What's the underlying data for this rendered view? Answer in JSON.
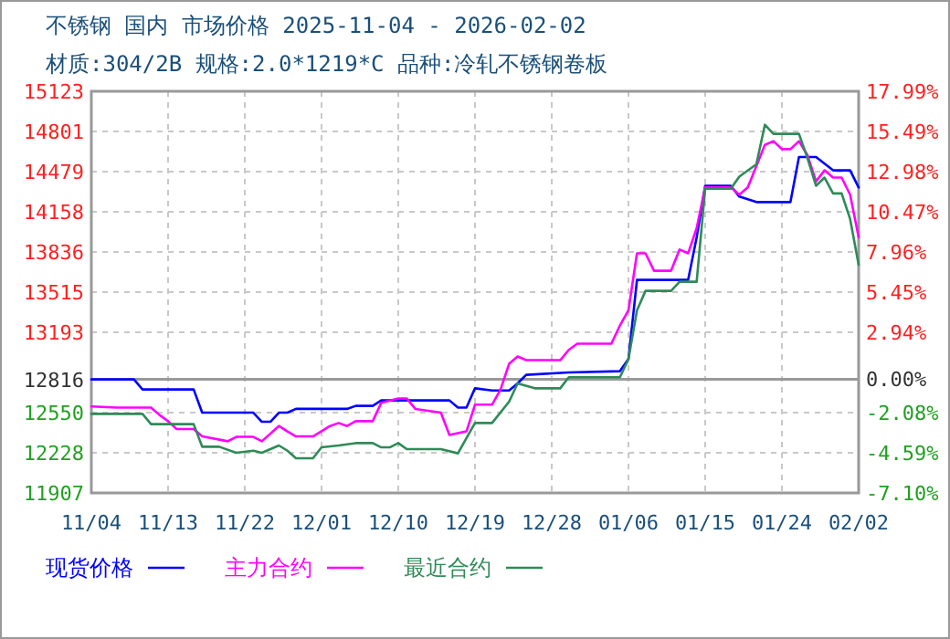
{
  "chart_data": {
    "type": "line",
    "title": "不锈钢 国内 市场价格 2025-11-04 - 2026-02-02",
    "subtitle": "材质:304/2B 规格:2.0*1219*C 品种:冷轧不锈钢卷板",
    "xlim": [
      "2025-11-04",
      "2026-02-02"
    ],
    "xticks": [
      {
        "value": "2025-11-04",
        "label": "11/04"
      },
      {
        "value": "2025-11-13",
        "label": "11/13"
      },
      {
        "value": "2025-11-22",
        "label": "11/22"
      },
      {
        "value": "2025-12-01",
        "label": "12/01"
      },
      {
        "value": "2025-12-10",
        "label": "12/10"
      },
      {
        "value": "2025-12-19",
        "label": "12/19"
      },
      {
        "value": "2025-12-28",
        "label": "12/28"
      },
      {
        "value": "2026-01-06",
        "label": "01/06"
      },
      {
        "value": "2026-01-15",
        "label": "01/15"
      },
      {
        "value": "2026-01-24",
        "label": "01/24"
      },
      {
        "value": "2026-02-02",
        "label": "02/02"
      }
    ],
    "ylim": [
      11907,
      15123
    ],
    "yticks": [
      11907,
      12228,
      12550,
      12816,
      13193,
      13515,
      13836,
      14158,
      14479,
      14801,
      15123
    ],
    "y2lim": [
      -7.1,
      17.99
    ],
    "y2ticks": [
      {
        "value": -7.1,
        "label": "-7.10%"
      },
      {
        "value": -4.59,
        "label": "-4.59%"
      },
      {
        "value": -2.08,
        "label": "-2.08%"
      },
      {
        "value": 0,
        "label": "0.00%"
      },
      {
        "value": 2.94,
        "label": "2.94%"
      },
      {
        "value": 5.45,
        "label": "5.45%"
      },
      {
        "value": 7.96,
        "label": "7.96%"
      },
      {
        "value": 10.47,
        "label": "10.47%"
      },
      {
        "value": 12.98,
        "label": "12.98%"
      },
      {
        "value": 15.49,
        "label": "15.49%"
      },
      {
        "value": 17.99,
        "label": "17.99%"
      }
    ],
    "ref_lines": [
      {
        "axis": "y2",
        "value": 0,
        "color": "#999999"
      }
    ],
    "grid": true,
    "legend": "bottom",
    "line_style": "solid",
    "marker": "none",
    "series": [
      {
        "name": "现货价格",
        "color": "#0000ff",
        "x": [
          "2025-11-04",
          "2025-11-09",
          "2025-11-10",
          "2025-11-16",
          "2025-11-17",
          "2025-11-23",
          "2025-11-24",
          "2025-11-25",
          "2025-11-26",
          "2025-11-27",
          "2025-11-28",
          "2025-12-04",
          "2025-12-05",
          "2025-12-07",
          "2025-12-08",
          "2025-12-16",
          "2025-12-17",
          "2025-12-18",
          "2025-12-19",
          "2025-12-21",
          "2025-12-23",
          "2025-12-24",
          "2025-12-25",
          "2025-12-30",
          "2026-01-05",
          "2026-01-06",
          "2026-01-07",
          "2026-01-13",
          "2026-01-14",
          "2026-01-15",
          "2026-01-18",
          "2026-01-19",
          "2026-01-21",
          "2026-01-25",
          "2026-01-26",
          "2026-01-28",
          "2026-01-30",
          "2026-02-01",
          "2026-02-02"
        ],
        "values": [
          12816,
          12816,
          12736,
          12736,
          12550,
          12550,
          12477,
          12477,
          12550,
          12550,
          12580,
          12580,
          12604,
          12604,
          12648,
          12648,
          12590,
          12590,
          12745,
          12728,
          12728,
          12784,
          12853,
          12872,
          12882,
          12979,
          13613,
          13613,
          13954,
          14367,
          14367,
          14280,
          14236,
          14236,
          14597,
          14597,
          14490,
          14490,
          14353
        ]
      },
      {
        "name": "主力合约",
        "color": "#ff00ff",
        "x": [
          "2025-11-04",
          "2025-11-07",
          "2025-11-11",
          "2025-11-12",
          "2025-11-13",
          "2025-11-14",
          "2025-11-16",
          "2025-11-17",
          "2025-11-20",
          "2025-11-21",
          "2025-11-23",
          "2025-11-24",
          "2025-11-26",
          "2025-11-27",
          "2025-11-28",
          "2025-11-30",
          "2025-12-02",
          "2025-12-03",
          "2025-12-04",
          "2025-12-05",
          "2025-12-07",
          "2025-12-08",
          "2025-12-10",
          "2025-12-11",
          "2025-12-12",
          "2025-12-15",
          "2025-12-16",
          "2025-12-18",
          "2025-12-19",
          "2025-12-21",
          "2025-12-22",
          "2025-12-23",
          "2025-12-24",
          "2025-12-25",
          "2025-12-29",
          "2025-12-30",
          "2025-12-31",
          "2026-01-04",
          "2026-01-05",
          "2026-01-06",
          "2026-01-07",
          "2026-01-08",
          "2026-01-09",
          "2026-01-11",
          "2026-01-12",
          "2026-01-13",
          "2026-01-14",
          "2026-01-15",
          "2026-01-18",
          "2026-01-19",
          "2026-01-20",
          "2026-01-22",
          "2026-01-23",
          "2026-01-24",
          "2026-01-25",
          "2026-01-26",
          "2026-01-27",
          "2026-01-28",
          "2026-01-29",
          "2026-01-30",
          "2026-01-31",
          "2026-02-01",
          "2026-02-02"
        ],
        "values": [
          12599,
          12590,
          12590,
          12531,
          12482,
          12419,
          12419,
          12360,
          12321,
          12356,
          12356,
          12321,
          12443,
          12400,
          12360,
          12360,
          12443,
          12467,
          12443,
          12482,
          12482,
          12628,
          12663,
          12663,
          12580,
          12550,
          12371,
          12400,
          12614,
          12614,
          12736,
          12941,
          13000,
          12970,
          12970,
          13053,
          13102,
          13102,
          13248,
          13369,
          13826,
          13826,
          13686,
          13686,
          13856,
          13826,
          14027,
          14353,
          14353,
          14295,
          14353,
          14694,
          14724,
          14660,
          14660,
          14724,
          14611,
          14402,
          14490,
          14432,
          14432,
          14295,
          13954
        ]
      },
      {
        "name": "最近合约",
        "color": "#2e8b57",
        "x": [
          "2025-11-04",
          "2025-11-10",
          "2025-11-11",
          "2025-11-16",
          "2025-11-17",
          "2025-11-19",
          "2025-11-21",
          "2025-11-23",
          "2025-11-24",
          "2025-11-26",
          "2025-11-27",
          "2025-11-28",
          "2025-11-30",
          "2025-12-01",
          "2025-12-03",
          "2025-12-05",
          "2025-12-07",
          "2025-12-08",
          "2025-12-09",
          "2025-12-10",
          "2025-12-11",
          "2025-12-15",
          "2025-12-17",
          "2025-12-18",
          "2025-12-19",
          "2025-12-21",
          "2025-12-23",
          "2025-12-24",
          "2025-12-26",
          "2025-12-29",
          "2025-12-30",
          "2026-01-05",
          "2026-01-06",
          "2026-01-07",
          "2026-01-08",
          "2026-01-11",
          "2026-01-12",
          "2026-01-14",
          "2026-01-15",
          "2026-01-18",
          "2026-01-19",
          "2026-01-21",
          "2026-01-22",
          "2026-01-23",
          "2026-01-26",
          "2026-01-27",
          "2026-01-28",
          "2026-01-29",
          "2026-01-30",
          "2026-01-31",
          "2026-02-01",
          "2026-02-02"
        ],
        "values": [
          12540,
          12540,
          12458,
          12458,
          12277,
          12277,
          12229,
          12245,
          12229,
          12287,
          12245,
          12185,
          12185,
          12272,
          12287,
          12306,
          12306,
          12272,
          12272,
          12306,
          12258,
          12258,
          12224,
          12346,
          12467,
          12467,
          12638,
          12784,
          12745,
          12745,
          12833,
          12833,
          12979,
          13369,
          13525,
          13525,
          13598,
          13598,
          14343,
          14343,
          14440,
          14538,
          14855,
          14782,
          14782,
          14587,
          14367,
          14432,
          14305,
          14305,
          14100,
          13734
        ]
      }
    ]
  }
}
